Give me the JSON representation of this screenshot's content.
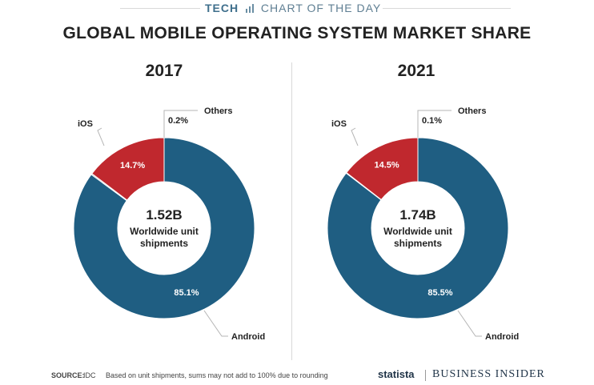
{
  "header": {
    "brand_left": "TECH",
    "brand_right": "CHART OF THE DAY"
  },
  "title": "GLOBAL MOBILE OPERATING SYSTEM MARKET SHARE",
  "chart_data": [
    {
      "type": "pie",
      "title": "2017",
      "center_value": "1.52B",
      "center_label_line1": "Worldwide unit",
      "center_label_line2": "shipments",
      "slices": [
        {
          "name": "Android",
          "value": 85.1,
          "label": "85.1%",
          "color": "#1f5e82"
        },
        {
          "name": "Others",
          "value": 0.2,
          "label": "0.2%",
          "color": "#9aa6ad"
        },
        {
          "name": "iOS",
          "value": 14.7,
          "label": "14.7%",
          "color": "#c0282e"
        }
      ]
    },
    {
      "type": "pie",
      "title": "2021",
      "center_value": "1.74B",
      "center_label_line1": "Worldwide unit",
      "center_label_line2": "shipments",
      "slices": [
        {
          "name": "Android",
          "value": 85.5,
          "label": "85.5%",
          "color": "#1f5e82"
        },
        {
          "name": "Others",
          "value": 0.1,
          "label": "0.1%",
          "color": "#9aa6ad"
        },
        {
          "name": "iOS",
          "value": 14.5,
          "label": "14.5%",
          "color": "#c0282e"
        }
      ]
    }
  ],
  "footer": {
    "source_label": "SOURCE:",
    "source_value": "IDC",
    "note": "Based on unit shipments, sums may not add to 100% due to rounding",
    "statista": "statista",
    "business_insider": "BUSINESS INSIDER"
  }
}
